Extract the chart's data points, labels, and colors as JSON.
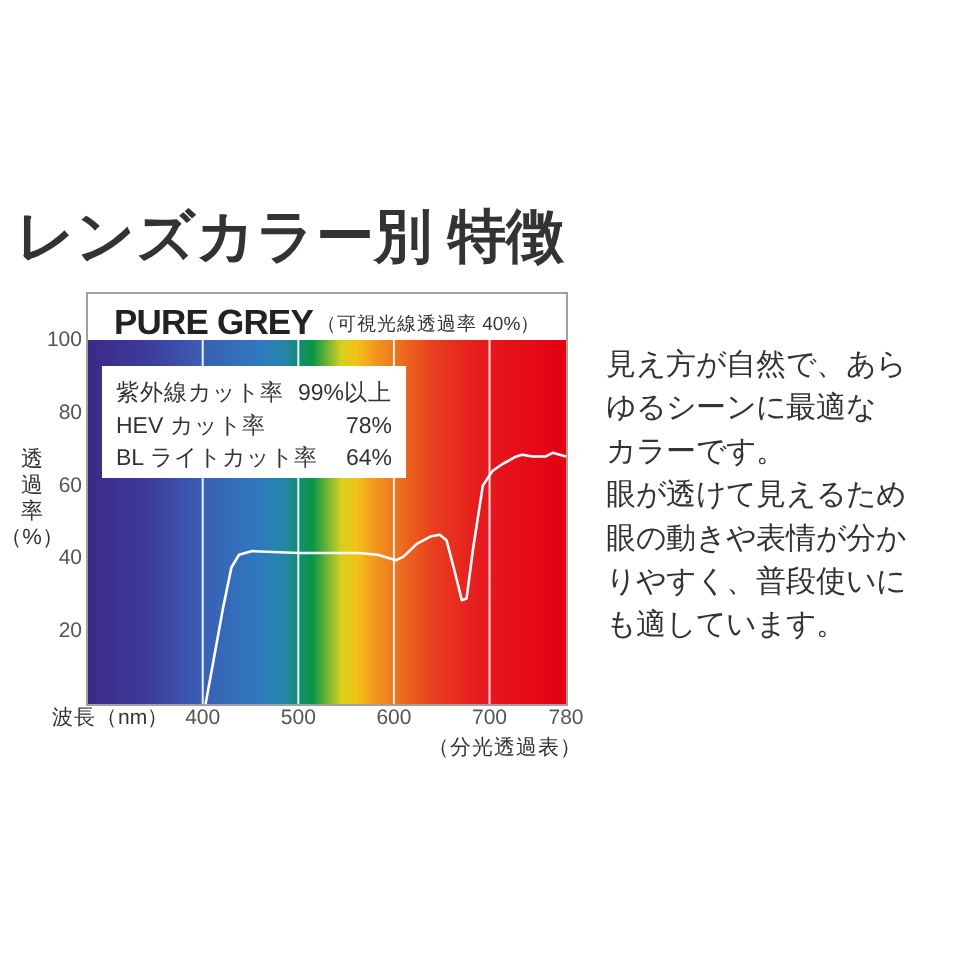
{
  "chart_data": {
    "type": "line",
    "title": "レンズカラー別 特徴",
    "subtitle": "PURE GREY",
    "xlabel": "波長（nm）",
    "ylabel": "透過率（%）",
    "annotations": [
      "（可視光線透過率 40%）",
      "紫外線カット率",
      "99%以上",
      "HEV カット率",
      "78%",
      "BL ライトカット率",
      "64%",
      "（分光透過表）",
      "見え方が自然で、あらゆるシーンに最適なカラーです。",
      "眼が透けて見えるため眼の動きや表情が分かりやすく、普段使いにも適しています。"
    ],
    "x": [
      403,
      412,
      421,
      430,
      438,
      452,
      500,
      528,
      562,
      583,
      602,
      610,
      624,
      638,
      648,
      655,
      664,
      671,
      676,
      683,
      693,
      703,
      714,
      728,
      734,
      745,
      759,
      766,
      780
    ],
    "series": [
      {
        "color": "#ffffff",
        "values": [
          0,
          13,
          26,
          37.5,
          41,
          42,
          41.5,
          41.5,
          41.5,
          41,
          39.5,
          40.5,
          44,
          46,
          46.5,
          45,
          36,
          28.5,
          29,
          43,
          60,
          64,
          66,
          68,
          68.5,
          68,
          68,
          69,
          68
        ]
      }
    ],
    "xlim": [
      280,
      780
    ],
    "ylim": [
      0,
      100
    ],
    "xticks": [
      400,
      500,
      600,
      700,
      780
    ],
    "yticks": [
      20,
      40,
      60,
      80,
      100
    ],
    "grid": "x"
  }
}
